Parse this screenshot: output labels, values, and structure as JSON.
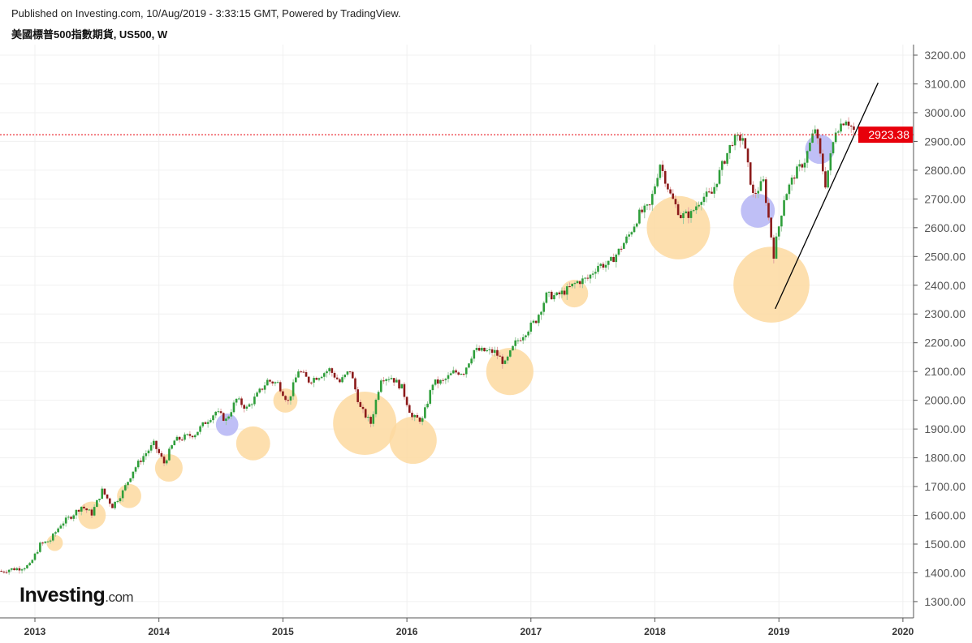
{
  "header": {
    "published": "Published on Investing.com, 10/Aug/2019 - 3:33:15 GMT, Powered by TradingView.",
    "symbol": "美國標普500指數期貨, US500, W"
  },
  "logo": {
    "main": "Investing",
    "suffix": ".com"
  },
  "chart_data": {
    "type": "candlestick",
    "interval": "W",
    "ylim": [
      1240,
      3240
    ],
    "yticks": [
      1300,
      1400,
      1500,
      1600,
      1700,
      1800,
      1900,
      2000,
      2100,
      2200,
      2300,
      2400,
      2500,
      2600,
      2700,
      2800,
      2900,
      3000,
      3100,
      3200
    ],
    "ytick_labels": [
      "1300.00",
      "1400.00",
      "1500.00",
      "1600.00",
      "1700.00",
      "1800.00",
      "1900.00",
      "2000.00",
      "2100.00",
      "2200.00",
      "2300.00",
      "2400.00",
      "2500.00",
      "2600.00",
      "2700.00",
      "2800.00",
      "2900.00",
      "3000.00",
      "3100.00",
      "3200.00"
    ],
    "xlim": [
      2012.72,
      2020.1
    ],
    "xticks": [
      2013,
      2014,
      2015,
      2016,
      2017,
      2018,
      2019,
      2020
    ],
    "xtick_labels": [
      "2013",
      "2014",
      "2015",
      "2016",
      "2017",
      "2018",
      "2019",
      "2020"
    ],
    "grid": true,
    "up_color": "#2e9e3a",
    "down_color": "#8b1a1a",
    "last_price": {
      "value": 2923.38,
      "label": "2923.38",
      "color": "#e8000b"
    },
    "monthly_closes": [
      [
        "2012-10",
        1412
      ],
      [
        "2012-11",
        1416
      ],
      [
        "2012-12",
        1426
      ],
      [
        "2013-01",
        1498
      ],
      [
        "2013-02",
        1514
      ],
      [
        "2013-03",
        1569
      ],
      [
        "2013-04",
        1597
      ],
      [
        "2013-05",
        1631
      ],
      [
        "2013-06",
        1606
      ],
      [
        "2013-07",
        1686
      ],
      [
        "2013-08",
        1632
      ],
      [
        "2013-09",
        1682
      ],
      [
        "2013-10",
        1756
      ],
      [
        "2013-11",
        1806
      ],
      [
        "2013-12",
        1848
      ],
      [
        "2014-01",
        1782
      ],
      [
        "2014-02",
        1859
      ],
      [
        "2014-03",
        1872
      ],
      [
        "2014-04",
        1884
      ],
      [
        "2014-05",
        1924
      ],
      [
        "2014-06",
        1960
      ],
      [
        "2014-07",
        1931
      ],
      [
        "2014-08",
        2003
      ],
      [
        "2014-09",
        1972
      ],
      [
        "2014-10",
        2018
      ],
      [
        "2014-11",
        2068
      ],
      [
        "2014-12",
        2059
      ],
      [
        "2015-01",
        1995
      ],
      [
        "2015-02",
        2105
      ],
      [
        "2015-03",
        2068
      ],
      [
        "2015-04",
        2086
      ],
      [
        "2015-05",
        2107
      ],
      [
        "2015-06",
        2063
      ],
      [
        "2015-07",
        2104
      ],
      [
        "2015-08",
        1972
      ],
      [
        "2015-09",
        1920
      ],
      [
        "2015-10",
        2079
      ],
      [
        "2015-11",
        2080
      ],
      [
        "2015-12",
        2044
      ],
      [
        "2016-01",
        1940
      ],
      [
        "2016-02",
        1932
      ],
      [
        "2016-03",
        2060
      ],
      [
        "2016-04",
        2065
      ],
      [
        "2016-05",
        2097
      ],
      [
        "2016-06",
        2099
      ],
      [
        "2016-07",
        2174
      ],
      [
        "2016-08",
        2171
      ],
      [
        "2016-09",
        2168
      ],
      [
        "2016-10",
        2126
      ],
      [
        "2016-11",
        2199
      ],
      [
        "2016-12",
        2239
      ],
      [
        "2017-01",
        2279
      ],
      [
        "2017-02",
        2364
      ],
      [
        "2017-03",
        2363
      ],
      [
        "2017-04",
        2384
      ],
      [
        "2017-05",
        2412
      ],
      [
        "2017-06",
        2423
      ],
      [
        "2017-07",
        2470
      ],
      [
        "2017-08",
        2472
      ],
      [
        "2017-09",
        2519
      ],
      [
        "2017-10",
        2575
      ],
      [
        "2017-11",
        2648
      ],
      [
        "2017-12",
        2674
      ],
      [
        "2018-01",
        2824
      ],
      [
        "2018-02",
        2714
      ],
      [
        "2018-03",
        2641
      ],
      [
        "2018-04",
        2648
      ],
      [
        "2018-05",
        2705
      ],
      [
        "2018-06",
        2718
      ],
      [
        "2018-07",
        2816
      ],
      [
        "2018-08",
        2902
      ],
      [
        "2018-09",
        2914
      ],
      [
        "2018-10",
        2712
      ],
      [
        "2018-11",
        2760
      ],
      [
        "2018-12",
        2507
      ],
      [
        "2019-01",
        2704
      ],
      [
        "2019-02",
        2784
      ],
      [
        "2019-03",
        2834
      ],
      [
        "2019-04",
        2946
      ],
      [
        "2019-05",
        2752
      ],
      [
        "2019-06",
        2942
      ],
      [
        "2019-07",
        2980
      ],
      [
        "2019-08",
        2923
      ]
    ],
    "annotations": {
      "circles": [
        {
          "date": 2013.16,
          "price": 1504,
          "radius_price": 28,
          "color": "#fdd9a0"
        },
        {
          "date": 2013.46,
          "price": 1600,
          "radius_price": 48,
          "color": "#fdd9a0"
        },
        {
          "date": 2013.76,
          "price": 1667,
          "radius_price": 42,
          "color": "#fdd9a0"
        },
        {
          "date": 2014.08,
          "price": 1765,
          "radius_price": 48,
          "color": "#fdd9a0"
        },
        {
          "date": 2014.55,
          "price": 1915,
          "radius_price": 39,
          "color": "#b4b4f5"
        },
        {
          "date": 2014.76,
          "price": 1850,
          "radius_price": 59,
          "color": "#fdd9a0"
        },
        {
          "date": 2015.02,
          "price": 1999,
          "radius_price": 42,
          "color": "#fdd9a0"
        },
        {
          "date": 2015.66,
          "price": 1920,
          "radius_price": 110,
          "color": "#fdd9a0"
        },
        {
          "date": 2016.05,
          "price": 1861,
          "radius_price": 82,
          "color": "#fdd9a0"
        },
        {
          "date": 2016.83,
          "price": 2100,
          "radius_price": 82,
          "color": "#fdd9a0"
        },
        {
          "date": 2017.35,
          "price": 2371,
          "radius_price": 48,
          "color": "#fdd9a0"
        },
        {
          "date": 2018.19,
          "price": 2600,
          "radius_price": 110,
          "color": "#fdd9a0"
        },
        {
          "date": 2018.83,
          "price": 2659,
          "radius_price": 59,
          "color": "#b4b4f5"
        },
        {
          "date": 2018.94,
          "price": 2402,
          "radius_price": 132,
          "color": "#fdd9a0"
        },
        {
          "date": 2019.33,
          "price": 2873,
          "radius_price": 51,
          "color": "#b4b4f5"
        }
      ],
      "trend_line": {
        "from": [
          2018.97,
          2318
        ],
        "to": [
          2019.8,
          3104
        ],
        "color": "#000000"
      }
    }
  }
}
